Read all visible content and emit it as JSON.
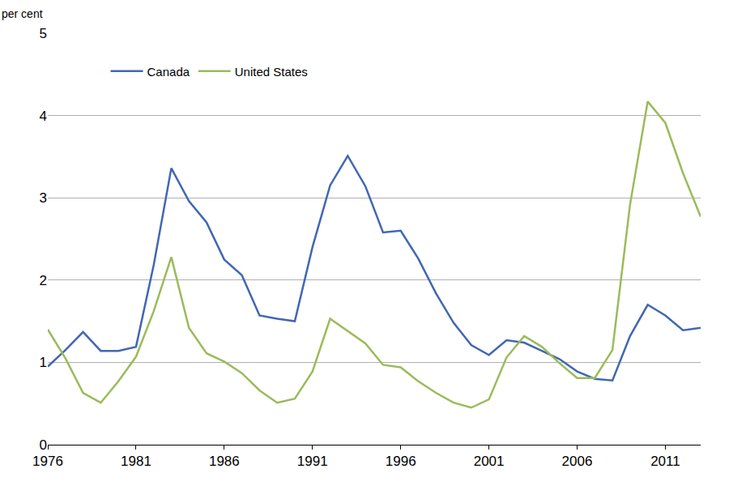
{
  "chart_data": {
    "type": "line",
    "y_label": "per cent",
    "x": [
      1976,
      1977,
      1978,
      1979,
      1980,
      1981,
      1982,
      1983,
      1984,
      1985,
      1986,
      1987,
      1988,
      1989,
      1990,
      1991,
      1992,
      1993,
      1994,
      1995,
      1996,
      1997,
      1998,
      1999,
      2000,
      2001,
      2002,
      2003,
      2004,
      2005,
      2006,
      2007,
      2008,
      2009,
      2010,
      2011,
      2012,
      2013
    ],
    "series": [
      {
        "name": "Canada",
        "color": "#4267b2",
        "values": [
          0.95,
          1.15,
          1.37,
          1.14,
          1.14,
          1.19,
          2.18,
          3.36,
          2.96,
          2.7,
          2.25,
          2.06,
          1.57,
          1.53,
          1.5,
          2.4,
          3.15,
          3.51,
          3.14,
          2.58,
          2.6,
          2.26,
          1.84,
          1.48,
          1.21,
          1.09,
          1.27,
          1.24,
          1.14,
          1.04,
          0.89,
          0.8,
          0.78,
          1.32,
          1.7,
          1.57,
          1.39,
          1.42
        ]
      },
      {
        "name": "United States",
        "color": "#9bbb59",
        "values": [
          1.4,
          1.05,
          0.63,
          0.51,
          0.77,
          1.07,
          1.62,
          2.28,
          1.42,
          1.11,
          1.01,
          0.87,
          0.66,
          0.51,
          0.56,
          0.89,
          1.53,
          1.38,
          1.23,
          0.97,
          0.94,
          0.77,
          0.63,
          0.51,
          0.45,
          0.55,
          1.06,
          1.32,
          1.19,
          0.99,
          0.81,
          0.81,
          1.15,
          2.92,
          4.17,
          3.91,
          3.3,
          2.77
        ]
      }
    ],
    "xlim": [
      1976,
      2013
    ],
    "xticks": [
      1976,
      1981,
      1986,
      1991,
      1996,
      2001,
      2006,
      2011
    ],
    "ylim": [
      0,
      5
    ],
    "yticks": [
      0,
      1,
      2,
      3,
      4,
      5
    ],
    "grid": true,
    "legend": "top left"
  }
}
